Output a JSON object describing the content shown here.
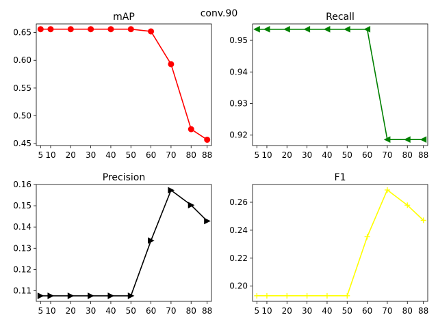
{
  "figure": {
    "suptitle": "conv.90"
  },
  "chart_data": [
    {
      "type": "line",
      "title": "mAP",
      "xlabel": "",
      "ylabel": "",
      "x": [
        5,
        10,
        20,
        30,
        40,
        50,
        60,
        70,
        80,
        88
      ],
      "xticks": [
        5,
        10,
        20,
        30,
        40,
        50,
        60,
        70,
        80,
        88
      ],
      "xlim": [
        2.85,
        90.15
      ],
      "ylim": [
        0.4465,
        0.6655
      ],
      "yticks": [
        0.45,
        0.5,
        0.55,
        0.6,
        0.65
      ],
      "ytick_labels": [
        "0.45",
        "0.50",
        "0.55",
        "0.60",
        "0.65"
      ],
      "grid": false,
      "series": [
        {
          "values": [
            0.656,
            0.656,
            0.656,
            0.656,
            0.656,
            0.656,
            0.652,
            0.593,
            0.476,
            0.457
          ],
          "color": "#ff0000",
          "marker": "circle"
        }
      ]
    },
    {
      "type": "line",
      "title": "Recall",
      "xlabel": "",
      "ylabel": "",
      "x": [
        5,
        10,
        20,
        30,
        40,
        50,
        60,
        70,
        80,
        88
      ],
      "xticks": [
        5,
        10,
        20,
        30,
        40,
        50,
        60,
        70,
        80,
        88
      ],
      "xlim": [
        2.85,
        90.15
      ],
      "ylim": [
        0.9167,
        0.9552
      ],
      "yticks": [
        0.92,
        0.93,
        0.94,
        0.95
      ],
      "ytick_labels": [
        "0.92",
        "0.93",
        "0.94",
        "0.95"
      ],
      "grid": false,
      "series": [
        {
          "values": [
            0.9535,
            0.9535,
            0.9535,
            0.9535,
            0.9535,
            0.9535,
            0.9535,
            0.9186,
            0.9186,
            0.9186
          ],
          "color": "#008000",
          "marker": "triangle-left"
        }
      ]
    },
    {
      "type": "line",
      "title": "Precision",
      "xlabel": "",
      "ylabel": "",
      "x": [
        5,
        10,
        20,
        30,
        40,
        50,
        60,
        70,
        80,
        88
      ],
      "xticks": [
        5,
        10,
        20,
        30,
        40,
        50,
        60,
        70,
        80,
        88
      ],
      "xlim": [
        2.85,
        90.15
      ],
      "ylim": [
        0.105,
        0.16
      ],
      "yticks": [
        0.11,
        0.12,
        0.13,
        0.14,
        0.15,
        0.16
      ],
      "ytick_labels": [
        "0.11",
        "0.12",
        "0.13",
        "0.14",
        "0.15",
        "0.16"
      ],
      "grid": false,
      "series": [
        {
          "values": [
            0.1076,
            0.1076,
            0.1076,
            0.1076,
            0.1076,
            0.1076,
            0.1336,
            0.1573,
            0.1503,
            0.1428
          ],
          "color": "#000000",
          "marker": "triangle-right"
        }
      ]
    },
    {
      "type": "line",
      "title": "F1",
      "xlabel": "",
      "ylabel": "",
      "x": [
        5,
        10,
        20,
        30,
        40,
        50,
        60,
        70,
        80,
        88
      ],
      "xticks": [
        5,
        10,
        20,
        30,
        40,
        50,
        60,
        70,
        80,
        88
      ],
      "xlim": [
        2.85,
        90.15
      ],
      "ylim": [
        0.1891,
        0.2727
      ],
      "yticks": [
        0.2,
        0.22,
        0.24,
        0.26
      ],
      "ytick_labels": [
        "0.20",
        "0.22",
        "0.24",
        "0.26"
      ],
      "grid": false,
      "series": [
        {
          "values": [
            0.1931,
            0.1931,
            0.1931,
            0.1931,
            0.1931,
            0.1931,
            0.2353,
            0.2688,
            0.2579,
            0.2471
          ],
          "color": "#ffff00",
          "marker": "plus"
        }
      ]
    }
  ]
}
